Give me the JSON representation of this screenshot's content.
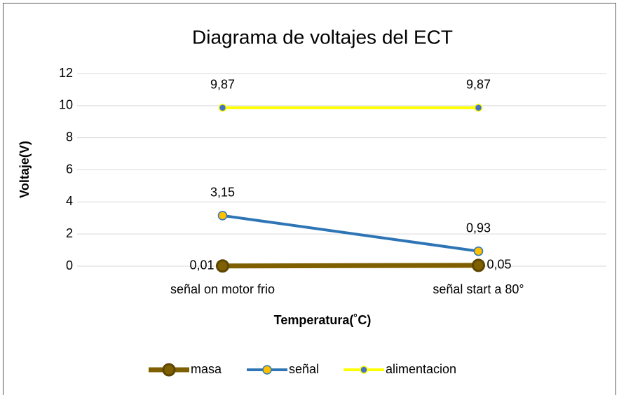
{
  "chart_data": {
    "type": "line",
    "title": "Diagrama de voltajes del ECT",
    "x_label": "Temperatura(˚C)",
    "y_label": "Voltaje(V)",
    "categories": [
      "señal on motor frio",
      "señal start a 80°"
    ],
    "series": [
      {
        "name": "masa",
        "color": "#7f6000",
        "marker_color": "#7f6000",
        "values": [
          0.01,
          0.05
        ],
        "value_labels": [
          "0,01",
          "0,05"
        ]
      },
      {
        "name": "señal",
        "color": "#2e75b6",
        "marker_color": "#ffc000",
        "values": [
          3.15,
          0.93
        ],
        "value_labels": [
          "3,15",
          "0,93"
        ]
      },
      {
        "name": "alimentacion",
        "color": "#ffff00",
        "marker_color": "#4472c4",
        "values": [
          9.87,
          9.87
        ],
        "value_labels": [
          "9,87",
          "9,87"
        ]
      }
    ],
    "ylim": [
      0,
      12
    ],
    "yticks": [
      0,
      2,
      4,
      6,
      8,
      10,
      12
    ],
    "grid": true,
    "legend": "bottom"
  }
}
